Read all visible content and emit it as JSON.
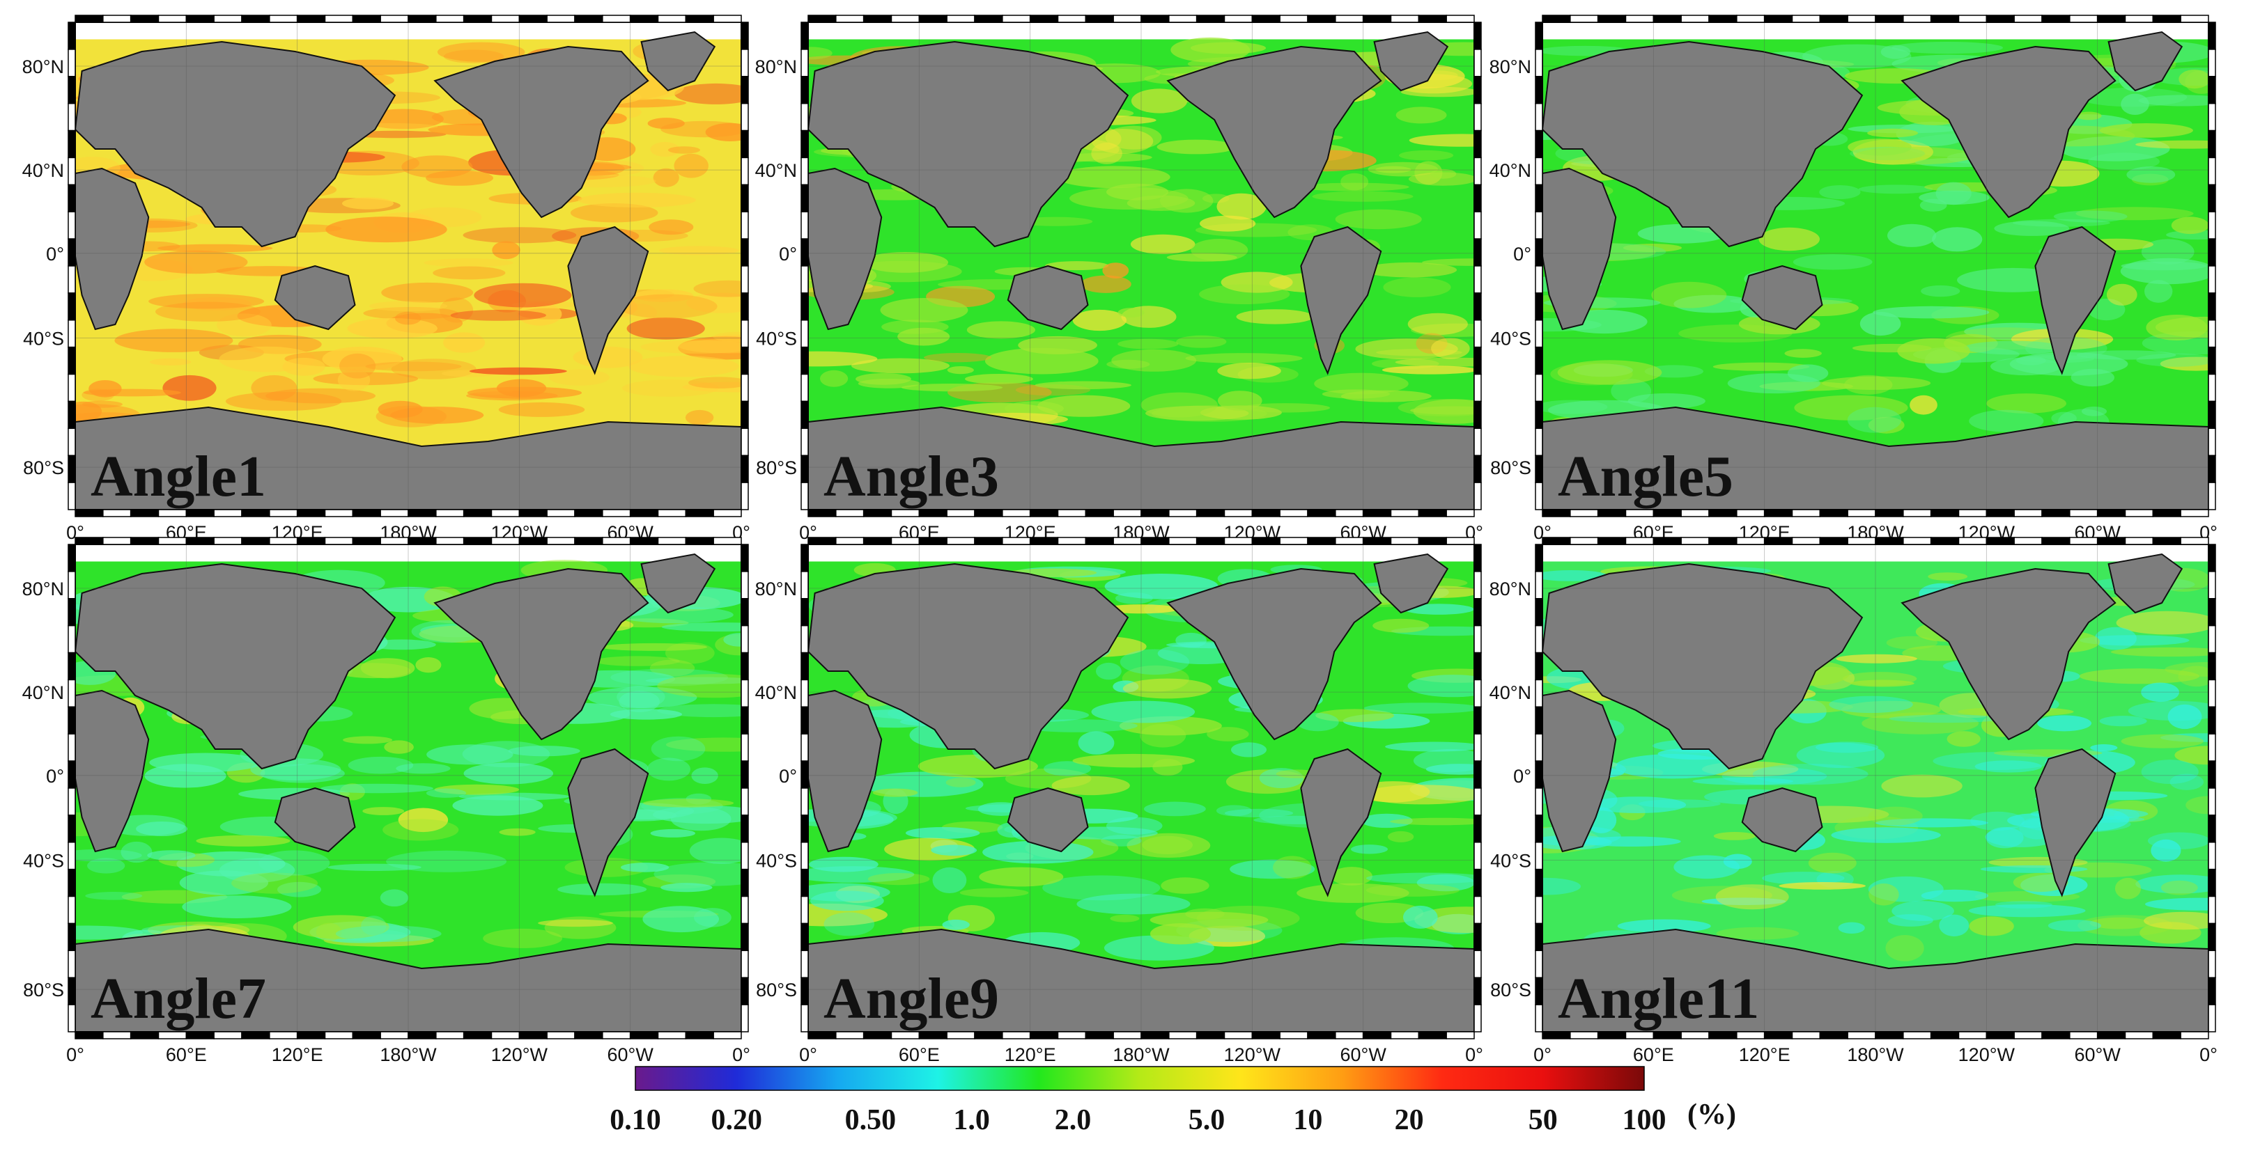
{
  "figure": {
    "panels": [
      {
        "label": "Angle1",
        "cover": {
          "major": "#f2e23a",
          "secondary": "#ff9a24",
          "third": "#ffd23a",
          "hot": "#f24a1c"
        }
      },
      {
        "label": "Angle3",
        "cover": {
          "major": "#2fe32a",
          "secondary": "#9ee832",
          "third": "#f3e63a",
          "hot": "#ff9a24"
        }
      },
      {
        "label": "Angle5",
        "cover": {
          "major": "#2fe32a",
          "secondary": "#56f08a",
          "third": "#9ee832",
          "hot": "#f3e63a"
        }
      },
      {
        "label": "Angle7",
        "cover": {
          "major": "#2fe32a",
          "secondary": "#52f3b0",
          "third": "#9ee832",
          "hot": "#f3e63a"
        }
      },
      {
        "label": "Angle9",
        "cover": {
          "major": "#2fe32a",
          "secondary": "#48f2c6",
          "third": "#9ee832",
          "hot": "#f3e63a"
        }
      },
      {
        "label": "Angle11",
        "cover": {
          "major": "#3fe85a",
          "secondary": "#35f0e0",
          "third": "#9ee832",
          "hot": "#f3e63a"
        }
      }
    ],
    "lat_ticks": [
      "80°N",
      "40°N",
      "0°",
      "40°S",
      "80°S"
    ],
    "lon_ticks": [
      "0°",
      "60°E",
      "120°E",
      "180°W",
      "120°W",
      "60°W",
      "0°"
    ],
    "land_color": "#7d7d7d",
    "colorbar": {
      "unit": "(%)",
      "tick_labels": [
        "0.10",
        "0.20",
        "0.50",
        "1.0",
        "2.0",
        "5.0",
        "10",
        "20",
        "50",
        "100"
      ],
      "stops": [
        "#6a1a8c",
        "#1f2bd8",
        "#16a8f0",
        "#1ef2e6",
        "#22e81d",
        "#b5ea17",
        "#ffe51a",
        "#ff9e13",
        "#ff2a12",
        "#e90f0f",
        "#7a0909"
      ]
    }
  }
}
